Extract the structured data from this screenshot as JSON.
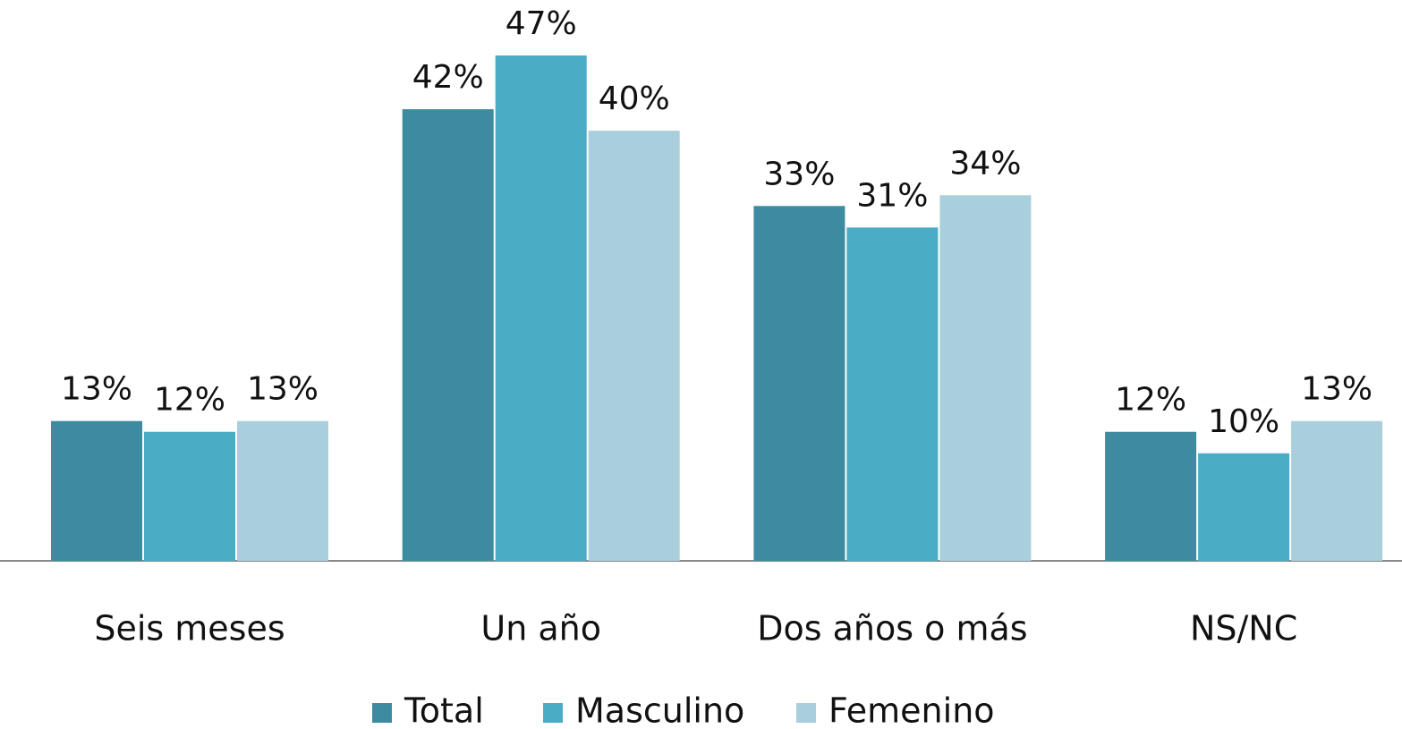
{
  "chart_data": {
    "type": "bar",
    "categories": [
      "Seis meses",
      "Un año",
      "Dos años o más",
      "NS/NC"
    ],
    "series": [
      {
        "name": "Total",
        "color": "#3d8ba1",
        "values": [
          13,
          42,
          33,
          12
        ],
        "value_labels": [
          "13%",
          "42%",
          "33%",
          "12%"
        ]
      },
      {
        "name": "Masculino",
        "color": "#4aacc5",
        "values": [
          12,
          47,
          31,
          10
        ],
        "value_labels": [
          "12%",
          "47%",
          "31%",
          "10%"
        ]
      },
      {
        "name": "Femenino",
        "color": "#a9cfdc",
        "values": [
          13,
          40,
          34,
          13
        ],
        "value_labels": [
          "13%",
          "40%",
          "34%",
          "13%"
        ]
      }
    ],
    "legend": "bottom"
  }
}
